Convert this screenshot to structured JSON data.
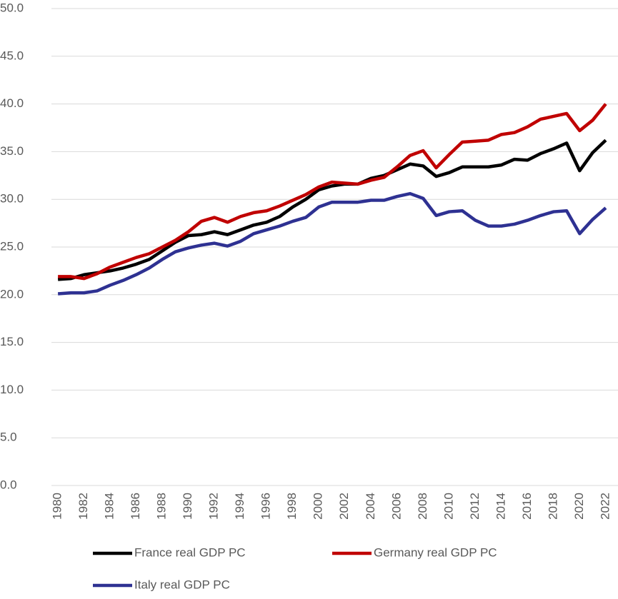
{
  "chart_data": {
    "type": "line",
    "categories": [
      "1980",
      null,
      "1982",
      null,
      "1984",
      null,
      "1986",
      null,
      "1988",
      null,
      "1990",
      null,
      "1992",
      null,
      "1994",
      null,
      "1996",
      null,
      "1998",
      null,
      "2000",
      null,
      "2002",
      null,
      "2004",
      null,
      "2006",
      null,
      "2008",
      null,
      "2010",
      null,
      "2012",
      null,
      "2014",
      null,
      "2016",
      null,
      "2018",
      null,
      "2020",
      null,
      "2022"
    ],
    "series": [
      {
        "name": "France real GDP PC",
        "color": "#000000",
        "values": [
          21.6,
          21.7,
          22.1,
          22.3,
          22.5,
          22.8,
          23.2,
          23.7,
          24.6,
          25.5,
          26.2,
          26.3,
          26.6,
          26.3,
          26.8,
          27.3,
          27.6,
          28.2,
          29.2,
          30.0,
          31.0,
          31.4,
          31.6,
          31.6,
          32.2,
          32.5,
          33.1,
          33.7,
          33.5,
          32.4,
          32.8,
          33.4,
          33.4,
          33.4,
          33.6,
          34.2,
          34.1,
          34.8,
          35.3,
          35.9,
          33.0,
          34.9,
          36.2
        ]
      },
      {
        "name": "Germany real GDP PC",
        "color": "#c00000",
        "values": [
          21.9,
          21.9,
          21.7,
          22.2,
          22.9,
          23.4,
          23.9,
          24.3,
          25.0,
          25.7,
          26.6,
          27.7,
          28.1,
          27.6,
          28.2,
          28.6,
          28.8,
          29.3,
          29.9,
          30.5,
          31.3,
          31.8,
          31.7,
          31.6,
          32.0,
          32.3,
          33.4,
          34.6,
          35.1,
          33.3,
          34.7,
          36.0,
          36.1,
          36.2,
          36.8,
          37.0,
          37.6,
          38.4,
          38.7,
          39.0,
          37.2,
          38.3,
          40.0
        ]
      },
      {
        "name": "Italy real GDP PC",
        "color": "#2e3192",
        "values": [
          20.1,
          20.2,
          20.2,
          20.4,
          21.0,
          21.5,
          22.1,
          22.8,
          23.7,
          24.5,
          24.9,
          25.2,
          25.4,
          25.1,
          25.6,
          26.4,
          26.8,
          27.2,
          27.7,
          28.1,
          29.2,
          29.7,
          29.7,
          29.7,
          29.9,
          29.9,
          30.3,
          30.6,
          30.1,
          28.3,
          28.7,
          28.8,
          27.8,
          27.2,
          27.2,
          27.4,
          27.8,
          28.3,
          28.7,
          28.8,
          26.4,
          27.9,
          29.1
        ]
      }
    ],
    "ylim": [
      0,
      50
    ],
    "yticks": [
      {
        "value": 0,
        "label": "0.0"
      },
      {
        "value": 5,
        "label": "5.0"
      },
      {
        "value": 10,
        "label": "10.0"
      },
      {
        "value": 15,
        "label": "15.0"
      },
      {
        "value": 20,
        "label": "20.0"
      },
      {
        "value": 25,
        "label": "25.0"
      },
      {
        "value": 30,
        "label": "30.0"
      },
      {
        "value": 35,
        "label": "35.0"
      },
      {
        "value": 40,
        "label": "40.0"
      },
      {
        "value": 45,
        "label": "45.0"
      },
      {
        "value": 50,
        "label": "50.0"
      }
    ],
    "grid": true
  }
}
